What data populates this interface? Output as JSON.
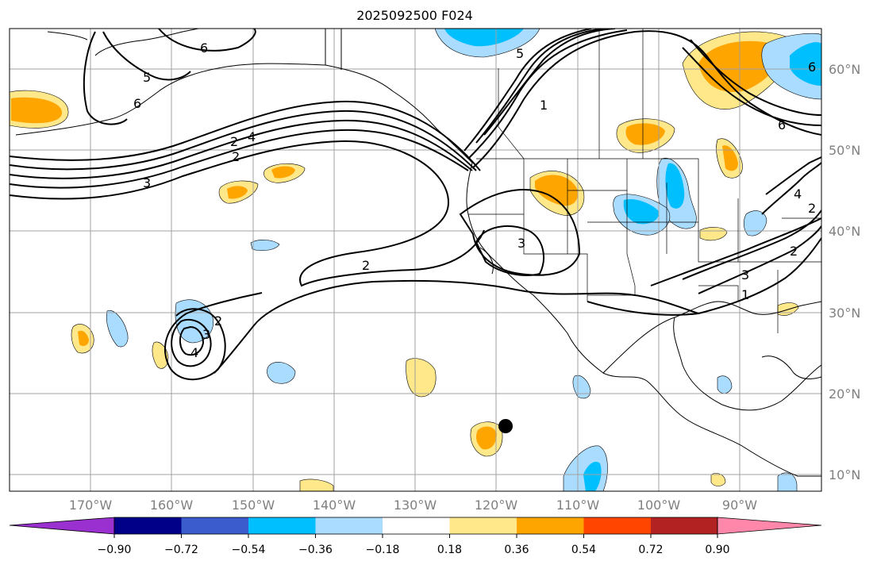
{
  "title": "2025092500 F024",
  "lat_labels": [
    "60°N",
    "50°N",
    "40°N",
    "30°N",
    "20°N",
    "10°N"
  ],
  "lon_labels": [
    "170°W",
    "160°W",
    "150°W",
    "140°W",
    "130°W",
    "120°W",
    "110°W",
    "100°W",
    "90°W"
  ],
  "colorbar": {
    "labels": [
      "−0.90",
      "−0.72",
      "−0.54",
      "−0.36",
      "−0.18",
      "0.18",
      "0.36",
      "0.54",
      "0.72",
      "0.90"
    ],
    "colors": [
      "#9b30d0",
      "#000088",
      "#3a5ccc",
      "#00bfff",
      "#aadcff",
      "#ffffff",
      "#ffe88a",
      "#ffa500",
      "#ff4500",
      "#b22222",
      "#ff88aa"
    ]
  },
  "contour_labels": [
    "6",
    "6",
    "6",
    "5",
    "5",
    "2",
    "4",
    "3",
    "2",
    "2",
    "3",
    "2",
    "3",
    "4",
    "1",
    "6",
    "2",
    "3",
    "1",
    "2",
    "4"
  ],
  "marker": "storm-center-dot"
}
